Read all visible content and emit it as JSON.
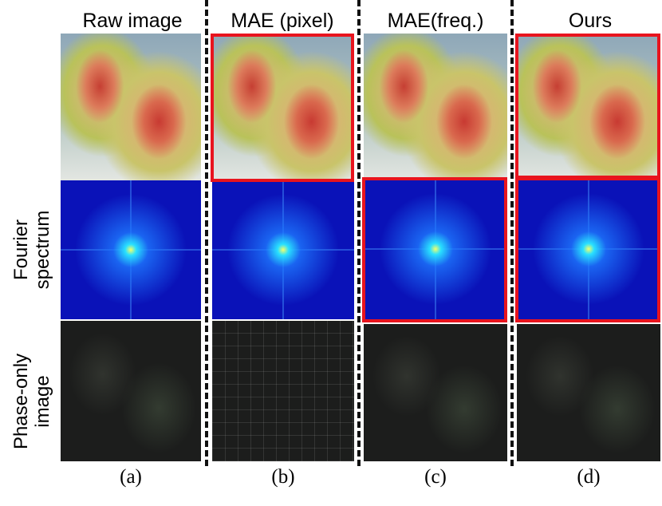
{
  "columns": [
    {
      "title": "Raw image",
      "label": "(a)"
    },
    {
      "title": "MAE (pixel)",
      "label": "(b)"
    },
    {
      "title": "MAE(freq.)",
      "label": "(c)"
    },
    {
      "title": "Ours",
      "label": "(d)"
    }
  ],
  "rows": [
    {
      "label": ""
    },
    {
      "label": "Fourier spectrum"
    },
    {
      "label": "Phase-only image"
    }
  ],
  "highlight_color": "#e8141e"
}
